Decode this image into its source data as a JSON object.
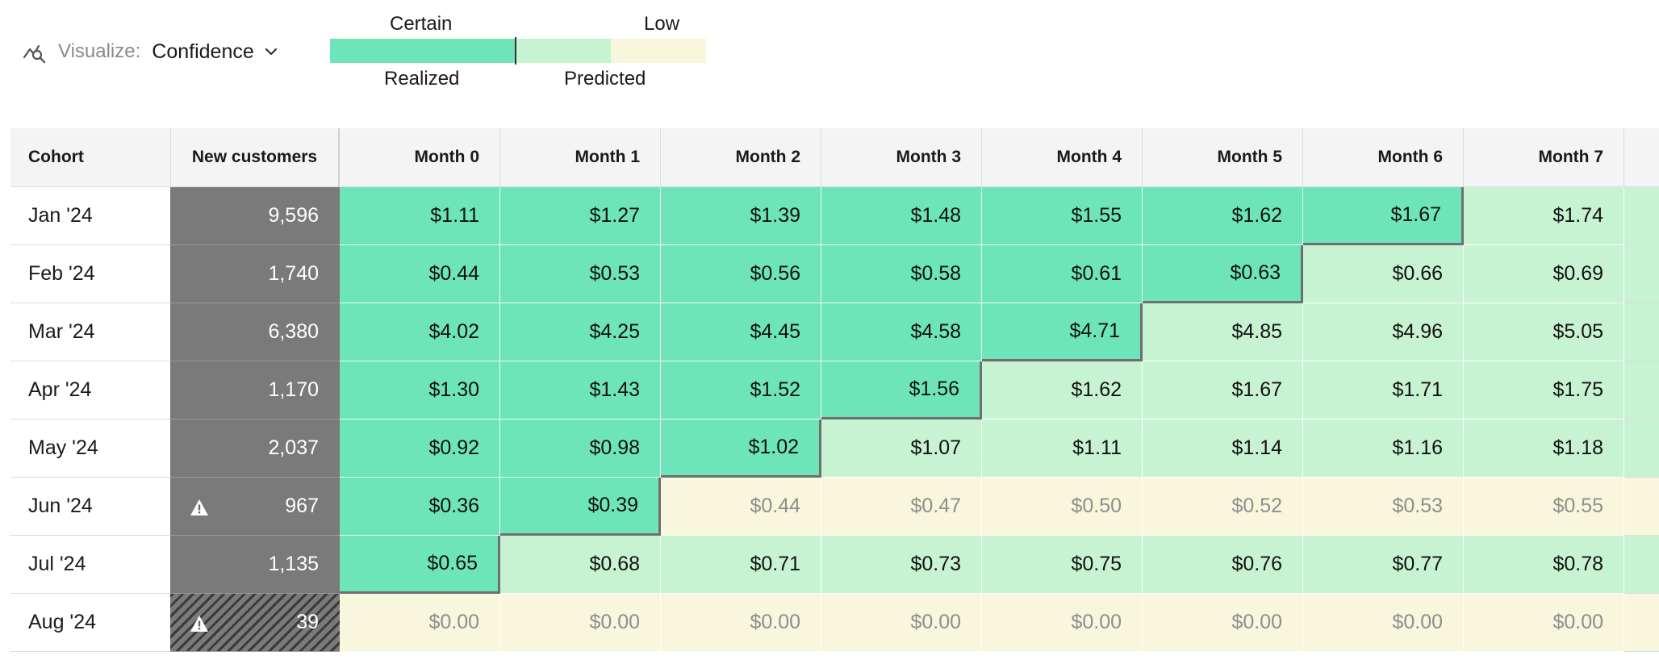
{
  "toolbar": {
    "icon": "line-chart-search-icon",
    "label": "Visualize:",
    "value": "Confidence"
  },
  "legend": {
    "certain": "Certain",
    "low": "Low",
    "realized": "Realized",
    "predicted": "Predicted",
    "colors": {
      "realized": "#6ee5b8",
      "predicted": "#c8f3d2",
      "low": "#f8f6dc"
    }
  },
  "table": {
    "headers": {
      "cohort": "Cohort",
      "new_customers": "New customers",
      "months": [
        "Month 0",
        "Month 1",
        "Month 2",
        "Month 3",
        "Month 4",
        "Month 5",
        "Month 6",
        "Month 7"
      ]
    },
    "rows": [
      {
        "cohort": "Jan '24",
        "new_customers": "9,596",
        "warning": false,
        "hatched": false,
        "realized_months": 7,
        "tail": "predicted",
        "values": [
          "$1.11",
          "$1.27",
          "$1.39",
          "$1.48",
          "$1.55",
          "$1.62",
          "$1.67",
          "$1.74"
        ],
        "states": [
          "realized",
          "realized",
          "realized",
          "realized",
          "realized",
          "realized",
          "realized",
          "predicted"
        ]
      },
      {
        "cohort": "Feb '24",
        "new_customers": "1,740",
        "warning": false,
        "hatched": false,
        "realized_months": 6,
        "tail": "predicted",
        "values": [
          "$0.44",
          "$0.53",
          "$0.56",
          "$0.58",
          "$0.61",
          "$0.63",
          "$0.66",
          "$0.69"
        ],
        "states": [
          "realized",
          "realized",
          "realized",
          "realized",
          "realized",
          "realized",
          "predicted",
          "predicted"
        ]
      },
      {
        "cohort": "Mar '24",
        "new_customers": "6,380",
        "warning": false,
        "hatched": false,
        "realized_months": 5,
        "tail": "predicted",
        "values": [
          "$4.02",
          "$4.25",
          "$4.45",
          "$4.58",
          "$4.71",
          "$4.85",
          "$4.96",
          "$5.05"
        ],
        "states": [
          "realized",
          "realized",
          "realized",
          "realized",
          "realized",
          "predicted",
          "predicted",
          "predicted"
        ]
      },
      {
        "cohort": "Apr '24",
        "new_customers": "1,170",
        "warning": false,
        "hatched": false,
        "realized_months": 4,
        "tail": "predicted",
        "values": [
          "$1.30",
          "$1.43",
          "$1.52",
          "$1.56",
          "$1.62",
          "$1.67",
          "$1.71",
          "$1.75"
        ],
        "states": [
          "realized",
          "realized",
          "realized",
          "realized",
          "predicted",
          "predicted",
          "predicted",
          "predicted"
        ]
      },
      {
        "cohort": "May '24",
        "new_customers": "2,037",
        "warning": false,
        "hatched": false,
        "realized_months": 3,
        "tail": "predicted",
        "values": [
          "$0.92",
          "$0.98",
          "$1.02",
          "$1.07",
          "$1.11",
          "$1.14",
          "$1.16",
          "$1.18"
        ],
        "states": [
          "realized",
          "realized",
          "realized",
          "predicted",
          "predicted",
          "predicted",
          "predicted",
          "predicted"
        ]
      },
      {
        "cohort": "Jun '24",
        "new_customers": "967",
        "warning": true,
        "hatched": false,
        "realized_months": 2,
        "tail": "low",
        "values": [
          "$0.36",
          "$0.39",
          "$0.44",
          "$0.47",
          "$0.50",
          "$0.52",
          "$0.53",
          "$0.55"
        ],
        "states": [
          "realized",
          "realized",
          "low",
          "low",
          "low",
          "low",
          "low",
          "low"
        ]
      },
      {
        "cohort": "Jul '24",
        "new_customers": "1,135",
        "warning": false,
        "hatched": false,
        "realized_months": 1,
        "tail": "predicted",
        "values": [
          "$0.65",
          "$0.68",
          "$0.71",
          "$0.73",
          "$0.75",
          "$0.76",
          "$0.77",
          "$0.78"
        ],
        "states": [
          "realized",
          "predicted",
          "predicted",
          "predicted",
          "predicted",
          "predicted",
          "predicted",
          "predicted"
        ]
      },
      {
        "cohort": "Aug '24",
        "new_customers": "39",
        "warning": true,
        "hatched": true,
        "realized_months": 0,
        "tail": "low",
        "values": [
          "$0.00",
          "$0.00",
          "$0.00",
          "$0.00",
          "$0.00",
          "$0.00",
          "$0.00",
          "$0.00"
        ],
        "states": [
          "low",
          "low",
          "low",
          "low",
          "low",
          "low",
          "low",
          "low"
        ]
      }
    ]
  }
}
